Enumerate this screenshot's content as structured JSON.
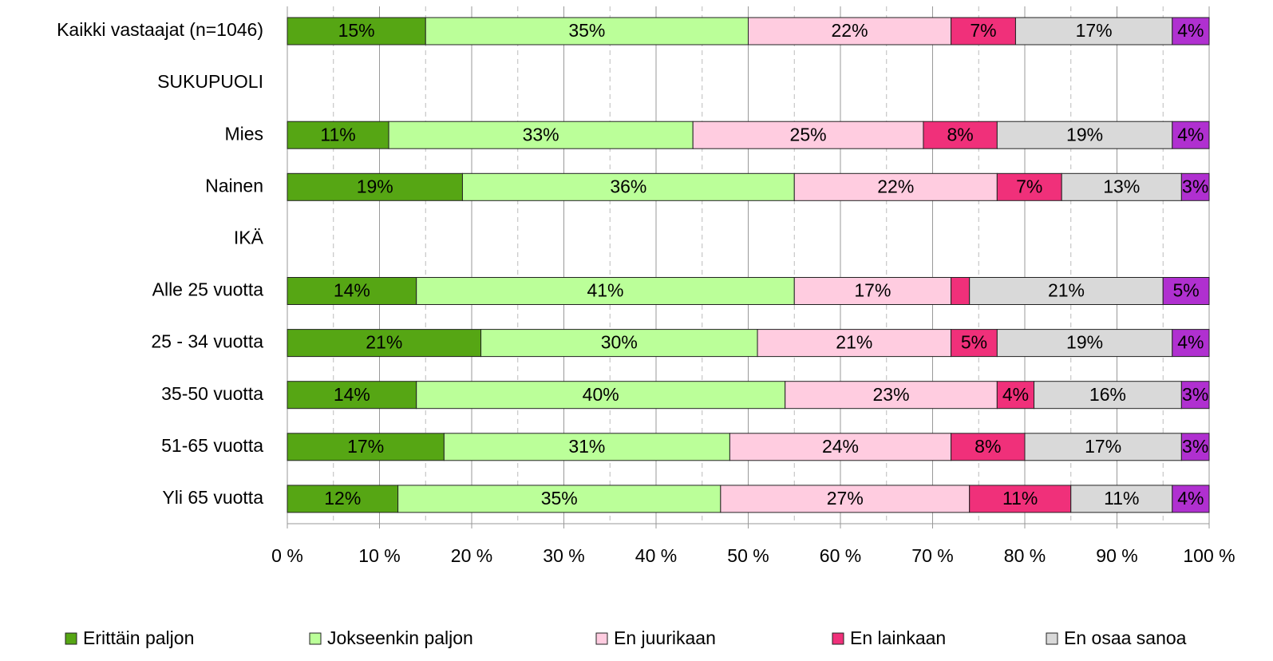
{
  "chart_data": {
    "type": "stacked-barh",
    "categories": [
      "Kaikki vastaajat (n=1046)",
      "SUKUPUOLI",
      "Mies",
      "Nainen",
      "IKÄ",
      "Alle 25 vuotta",
      "25 - 34 vuotta",
      "35-50 vuotta",
      "51-65 vuotta",
      "Yli 65 vuotta"
    ],
    "series": [
      {
        "name": "Erittäin paljon",
        "color": "#56a614",
        "values": [
          15,
          null,
          11,
          19,
          null,
          14,
          21,
          14,
          17,
          12
        ],
        "value_labels": [
          "15%",
          null,
          "11%",
          "19%",
          null,
          "14%",
          "21%",
          "14%",
          "17%",
          "12%"
        ]
      },
      {
        "name": "Jokseenkin paljon",
        "color": "#bbff99",
        "values": [
          35,
          null,
          33,
          36,
          null,
          41,
          30,
          40,
          31,
          35
        ],
        "value_labels": [
          "35%",
          null,
          "33%",
          "36%",
          null,
          "41%",
          "30%",
          "40%",
          "31%",
          "35%"
        ]
      },
      {
        "name": "En juurikaan",
        "color": "#ffcce0",
        "values": [
          22,
          null,
          25,
          22,
          null,
          17,
          21,
          23,
          24,
          27
        ],
        "value_labels": [
          "22%",
          null,
          "25%",
          "22%",
          null,
          "17%",
          "21%",
          "23%",
          "24%",
          "27%"
        ]
      },
      {
        "name": "En lainkaan",
        "color": "#f0307a",
        "values": [
          7,
          null,
          8,
          7,
          null,
          2,
          5,
          4,
          8,
          11
        ],
        "value_labels": [
          "7%",
          null,
          "8%",
          "7%",
          null,
          null,
          "5%",
          "4%",
          "8%",
          "11%"
        ]
      },
      {
        "name": "En osaa sanoa",
        "color": "#d9d9d9",
        "values": [
          17,
          null,
          19,
          13,
          null,
          21,
          19,
          16,
          17,
          11
        ],
        "value_labels": [
          "17%",
          null,
          "19%",
          "13%",
          null,
          "21%",
          "19%",
          "16%",
          "17%",
          "11%"
        ]
      },
      {
        "color": "#b030d0",
        "values": [
          4,
          null,
          4,
          3,
          null,
          5,
          4,
          3,
          3,
          4
        ],
        "value_labels": [
          "4%",
          null,
          "4%",
          "3%",
          null,
          "5%",
          "4%",
          "3%",
          "3%",
          "4%"
        ]
      }
    ],
    "xlim": [
      0,
      100
    ],
    "xticks": [
      {
        "value": 0,
        "label": "0 %"
      },
      {
        "value": 10,
        "label": "10 %"
      },
      {
        "value": 20,
        "label": "20 %"
      },
      {
        "value": 30,
        "label": "30 %"
      },
      {
        "value": 40,
        "label": "40 %"
      },
      {
        "value": 50,
        "label": "50 %"
      },
      {
        "value": 60,
        "label": "60 %"
      },
      {
        "value": 70,
        "label": "70 %"
      },
      {
        "value": 80,
        "label": "80 %"
      },
      {
        "value": 90,
        "label": "90 %"
      },
      {
        "value": 100,
        "label": "100 %"
      }
    ],
    "xminorticks": [
      5,
      15,
      25,
      35,
      45,
      55,
      65,
      75,
      85,
      95
    ],
    "grid": true,
    "legend": "bottom"
  }
}
